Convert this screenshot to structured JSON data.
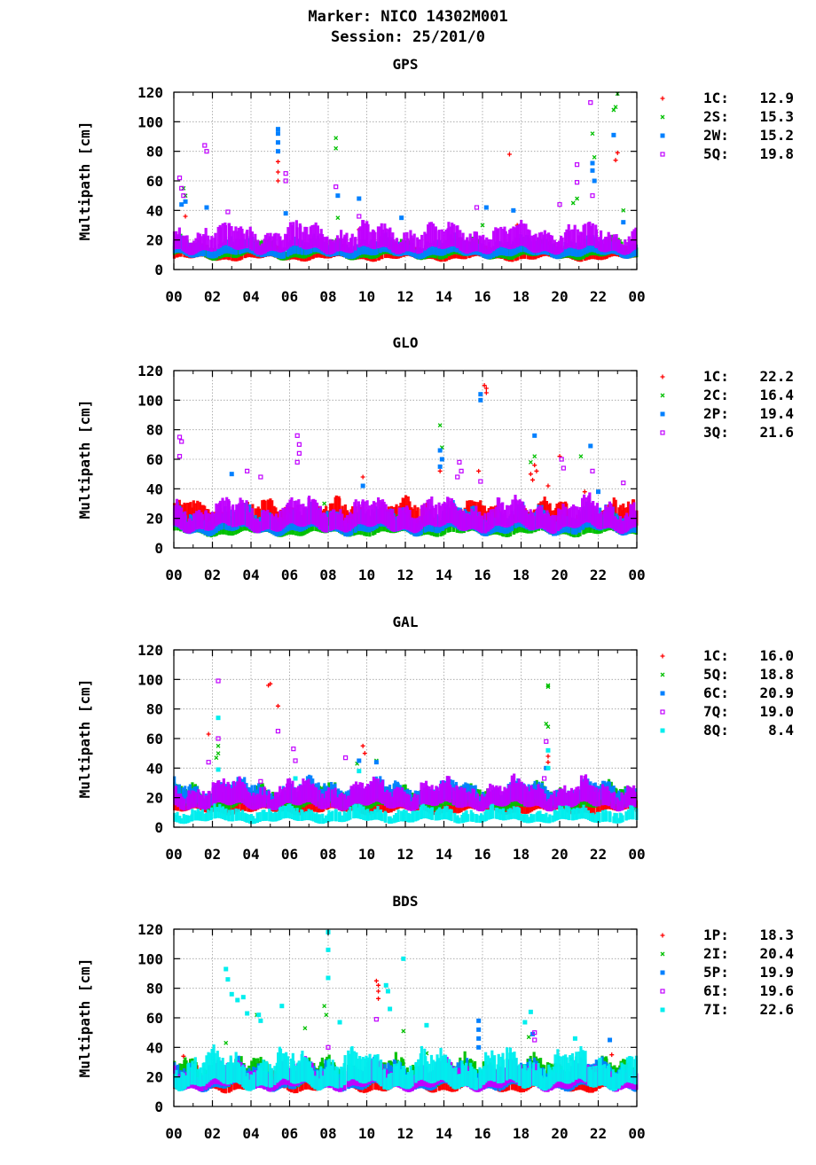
{
  "header": {
    "marker": "Marker: NICO 14302M001",
    "session": "Session: 25/201/0"
  },
  "colors": {
    "red": "#ff0000",
    "green": "#00c000",
    "blue": "#0080ff",
    "purple": "#c000ff",
    "cyan": "#00eeee"
  },
  "chart_data": [
    {
      "type": "scatter",
      "title": "GPS",
      "ylabel": "Multipath [cm]",
      "ylim": [
        0,
        120
      ],
      "xlim": [
        0,
        24
      ],
      "grid": true,
      "legend_position": "right",
      "y_ticks": [
        "0",
        "20",
        "40",
        "60",
        "80",
        "100",
        "120"
      ],
      "x_ticks": [
        "00",
        "02",
        "04",
        "06",
        "08",
        "10",
        "12",
        "14",
        "16",
        "18",
        "20",
        "22",
        "00"
      ],
      "series": [
        {
          "name": "1C",
          "value": "12.9",
          "marker": "plus",
          "color": "#ff0000",
          "base": 10,
          "spread": 4,
          "spikes": [
            [
              5.4,
              73
            ],
            [
              5.4,
              66
            ],
            [
              5.4,
              60
            ],
            [
              9.6,
              27
            ],
            [
              17.4,
              78
            ],
            [
              17.8,
              30
            ],
            [
              22.9,
              74
            ],
            [
              23.0,
              79
            ],
            [
              0.6,
              36
            ]
          ]
        },
        {
          "name": "2S",
          "value": "15.3",
          "marker": "x",
          "color": "#00c000",
          "base": 12,
          "spread": 5,
          "spikes": [
            [
              0.5,
              55
            ],
            [
              0.6,
              50
            ],
            [
              8.4,
              89
            ],
            [
              8.4,
              82
            ],
            [
              8.5,
              35
            ],
            [
              20.7,
              45
            ],
            [
              20.9,
              48
            ],
            [
              21.7,
              92
            ],
            [
              21.8,
              76
            ],
            [
              22.8,
              108
            ],
            [
              22.9,
              110
            ],
            [
              23.0,
              119
            ],
            [
              23.3,
              40
            ],
            [
              16.0,
              30
            ]
          ]
        },
        {
          "name": "2W",
          "value": "15.2",
          "marker": "square",
          "color": "#0080ff",
          "base": 13,
          "spread": 5,
          "spikes": [
            [
              0.4,
              44
            ],
            [
              0.6,
              46
            ],
            [
              1.7,
              42
            ],
            [
              5.4,
              95
            ],
            [
              5.4,
              92
            ],
            [
              5.4,
              86
            ],
            [
              5.4,
              80
            ],
            [
              5.8,
              38
            ],
            [
              8.5,
              50
            ],
            [
              9.6,
              48
            ],
            [
              11.8,
              35
            ],
            [
              16.2,
              42
            ],
            [
              17.6,
              40
            ],
            [
              21.7,
              72
            ],
            [
              21.7,
              67
            ],
            [
              21.8,
              60
            ],
            [
              22.8,
              91
            ],
            [
              23.3,
              32
            ]
          ]
        },
        {
          "name": "5Q",
          "value": "19.8",
          "marker": "open-square",
          "color": "#c000ff",
          "base": 18,
          "spread": 7,
          "spikes": [
            [
              0.3,
              62
            ],
            [
              0.4,
              55
            ],
            [
              0.5,
              50
            ],
            [
              1.6,
              84
            ],
            [
              1.7,
              80
            ],
            [
              2.8,
              39
            ],
            [
              5.8,
              60
            ],
            [
              5.8,
              65
            ],
            [
              8.4,
              56
            ],
            [
              9.6,
              36
            ],
            [
              15.7,
              42
            ],
            [
              20.0,
              44
            ],
            [
              20.9,
              71
            ],
            [
              20.9,
              59
            ],
            [
              21.6,
              113
            ],
            [
              21.7,
              50
            ]
          ]
        }
      ]
    },
    {
      "type": "scatter",
      "title": "GLO",
      "ylabel": "Multipath [cm]",
      "ylim": [
        0,
        120
      ],
      "xlim": [
        0,
        24
      ],
      "grid": true,
      "legend_position": "right",
      "y_ticks": [
        "0",
        "20",
        "40",
        "60",
        "80",
        "100",
        "120"
      ],
      "x_ticks": [
        "00",
        "02",
        "04",
        "06",
        "08",
        "10",
        "12",
        "14",
        "16",
        "18",
        "20",
        "22",
        "00"
      ],
      "series": [
        {
          "name": "1C",
          "value": "22.2",
          "marker": "plus",
          "color": "#ff0000",
          "base": 19,
          "spread": 7,
          "spikes": [
            [
              16.1,
              110
            ],
            [
              16.2,
              108
            ],
            [
              16.2,
              105
            ],
            [
              18.5,
              50
            ],
            [
              18.6,
              46
            ],
            [
              18.7,
              56
            ],
            [
              18.8,
              52
            ],
            [
              19.4,
              42
            ],
            [
              20.0,
              62
            ],
            [
              15.8,
              52
            ],
            [
              9.8,
              48
            ],
            [
              13.8,
              52
            ],
            [
              21.3,
              38
            ]
          ]
        },
        {
          "name": "2C",
          "value": "16.4",
          "marker": "x",
          "color": "#00c000",
          "base": 13,
          "spread": 5,
          "spikes": [
            [
              13.8,
              83
            ],
            [
              13.9,
              68
            ],
            [
              18.7,
              62
            ],
            [
              18.5,
              58
            ],
            [
              21.1,
              62
            ],
            [
              7.8,
              30
            ]
          ]
        },
        {
          "name": "2P",
          "value": "19.4",
          "marker": "square",
          "color": "#0080ff",
          "base": 16,
          "spread": 7,
          "spikes": [
            [
              15.9,
              104
            ],
            [
              15.9,
              100
            ],
            [
              13.8,
              66
            ],
            [
              13.9,
              60
            ],
            [
              13.8,
              55
            ],
            [
              18.7,
              76
            ],
            [
              21.6,
              69
            ],
            [
              3.0,
              50
            ],
            [
              9.8,
              42
            ],
            [
              22.0,
              38
            ]
          ]
        },
        {
          "name": "3Q",
          "value": "21.6",
          "marker": "open-square",
          "color": "#c000ff",
          "base": 19,
          "spread": 8,
          "spikes": [
            [
              0.3,
              75
            ],
            [
              0.4,
              72
            ],
            [
              0.3,
              62
            ],
            [
              6.4,
              76
            ],
            [
              6.5,
              70
            ],
            [
              6.5,
              64
            ],
            [
              6.4,
              58
            ],
            [
              4.5,
              48
            ],
            [
              3.8,
              52
            ],
            [
              14.8,
              58
            ],
            [
              14.9,
              52
            ],
            [
              14.7,
              48
            ],
            [
              20.1,
              60
            ],
            [
              20.2,
              54
            ],
            [
              21.7,
              52
            ],
            [
              23.3,
              44
            ],
            [
              15.9,
              45
            ]
          ]
        }
      ]
    },
    {
      "type": "scatter",
      "title": "GAL",
      "ylabel": "Multipath [cm]",
      "ylim": [
        0,
        120
      ],
      "xlim": [
        0,
        24
      ],
      "grid": true,
      "legend_position": "right",
      "y_ticks": [
        "0",
        "20",
        "40",
        "60",
        "80",
        "100",
        "120"
      ],
      "x_ticks": [
        "00",
        "02",
        "04",
        "06",
        "08",
        "10",
        "12",
        "14",
        "16",
        "18",
        "20",
        "22",
        "00"
      ],
      "series": [
        {
          "name": "1C",
          "value": "16.0",
          "marker": "plus",
          "color": "#ff0000",
          "base": 14,
          "spread": 5,
          "spikes": [
            [
              1.8,
              63
            ],
            [
              4.9,
              96
            ],
            [
              5.0,
              97
            ],
            [
              5.4,
              82
            ],
            [
              9.8,
              55
            ],
            [
              9.9,
              50
            ],
            [
              19.4,
              48
            ],
            [
              19.4,
              44
            ]
          ]
        },
        {
          "name": "5Q",
          "value": "18.8",
          "marker": "x",
          "color": "#00c000",
          "base": 18,
          "spread": 6,
          "spikes": [
            [
              2.3,
              55
            ],
            [
              2.2,
              47
            ],
            [
              2.3,
              50
            ],
            [
              19.4,
              96
            ],
            [
              19.4,
              95
            ],
            [
              19.3,
              70
            ],
            [
              19.4,
              68
            ],
            [
              10.5,
              45
            ],
            [
              9.5,
              43
            ],
            [
              13.9,
              28
            ]
          ]
        },
        {
          "name": "6C",
          "value": "20.9",
          "marker": "square",
          "color": "#0080ff",
          "base": 21,
          "spread": 6,
          "spikes": [
            [
              9.6,
              45
            ],
            [
              10.5,
              44
            ],
            [
              19.3,
              40
            ],
            [
              13.9,
              30
            ]
          ]
        },
        {
          "name": "7Q",
          "value": "19.0",
          "marker": "open-square",
          "color": "#c000ff",
          "base": 19,
          "spread": 7,
          "spikes": [
            [
              2.3,
              99
            ],
            [
              2.3,
              60
            ],
            [
              1.8,
              44
            ],
            [
              5.4,
              65
            ],
            [
              6.2,
              53
            ],
            [
              6.3,
              45
            ],
            [
              8.9,
              47
            ],
            [
              4.5,
              31
            ],
            [
              19.3,
              58
            ],
            [
              19.2,
              33
            ]
          ]
        },
        {
          "name": "8Q",
          "value": "8.4",
          "marker": "filled-square",
          "color": "#00eeee",
          "base": 7,
          "spread": 4,
          "spikes": [
            [
              2.3,
              74
            ],
            [
              2.3,
              39
            ],
            [
              19.4,
              52
            ],
            [
              19.4,
              40
            ],
            [
              6.3,
              33
            ],
            [
              9.6,
              38
            ]
          ]
        }
      ]
    },
    {
      "type": "scatter",
      "title": "BDS",
      "ylabel": "Multipath [cm]",
      "ylim": [
        0,
        120
      ],
      "xlim": [
        0,
        24
      ],
      "grid": true,
      "legend_position": "right",
      "y_ticks": [
        "0",
        "20",
        "40",
        "60",
        "80",
        "100",
        "120"
      ],
      "x_ticks": [
        "00",
        "02",
        "04",
        "06",
        "08",
        "10",
        "12",
        "14",
        "16",
        "18",
        "20",
        "22",
        "00"
      ],
      "series": [
        {
          "name": "1P",
          "value": "18.3",
          "marker": "plus",
          "color": "#ff0000",
          "base": 16,
          "spread": 6,
          "spikes": [
            [
              10.5,
              85
            ],
            [
              10.6,
              82
            ],
            [
              10.6,
              78
            ],
            [
              10.6,
              73
            ],
            [
              0.5,
              34
            ],
            [
              22.7,
              35
            ]
          ]
        },
        {
          "name": "2I",
          "value": "20.4",
          "marker": "x",
          "color": "#00c000",
          "base": 20,
          "spread": 7,
          "spikes": [
            [
              2.7,
              43
            ],
            [
              4.3,
              62
            ],
            [
              7.8,
              68
            ],
            [
              7.9,
              62
            ],
            [
              11.9,
              51
            ],
            [
              6.8,
              53
            ],
            [
              18.4,
              47
            ],
            [
              20.6,
              32
            ],
            [
              13.1,
              36
            ]
          ]
        },
        {
          "name": "5P",
          "value": "19.9",
          "marker": "square",
          "color": "#0080ff",
          "base": 18,
          "spread": 7,
          "spikes": [
            [
              15.8,
              58
            ],
            [
              15.8,
              52
            ],
            [
              15.8,
              46
            ],
            [
              15.8,
              40
            ],
            [
              22.6,
              45
            ],
            [
              18.6,
              49
            ]
          ]
        },
        {
          "name": "6I",
          "value": "19.6",
          "marker": "open-square",
          "color": "#c000ff",
          "base": 18,
          "spread": 7,
          "spikes": [
            [
              10.5,
              59
            ],
            [
              18.7,
              50
            ],
            [
              18.7,
              45
            ],
            [
              8.0,
              40
            ]
          ]
        },
        {
          "name": "7I",
          "value": "22.6",
          "marker": "filled-square",
          "color": "#00eeee",
          "base": 21,
          "spread": 9,
          "spikes": [
            [
              2.7,
              93
            ],
            [
              2.8,
              86
            ],
            [
              3.0,
              76
            ],
            [
              3.3,
              72
            ],
            [
              3.6,
              74
            ],
            [
              3.8,
              63
            ],
            [
              4.4,
              62
            ],
            [
              4.5,
              58
            ],
            [
              5.6,
              68
            ],
            [
              8.0,
              118
            ],
            [
              8.0,
              106
            ],
            [
              8.0,
              87
            ],
            [
              11.0,
              82
            ],
            [
              11.1,
              78
            ],
            [
              11.9,
              100
            ],
            [
              8.6,
              57
            ],
            [
              13.1,
              55
            ],
            [
              18.5,
              64
            ],
            [
              18.2,
              57
            ],
            [
              20.8,
              46
            ],
            [
              11.2,
              66
            ]
          ]
        }
      ]
    }
  ]
}
